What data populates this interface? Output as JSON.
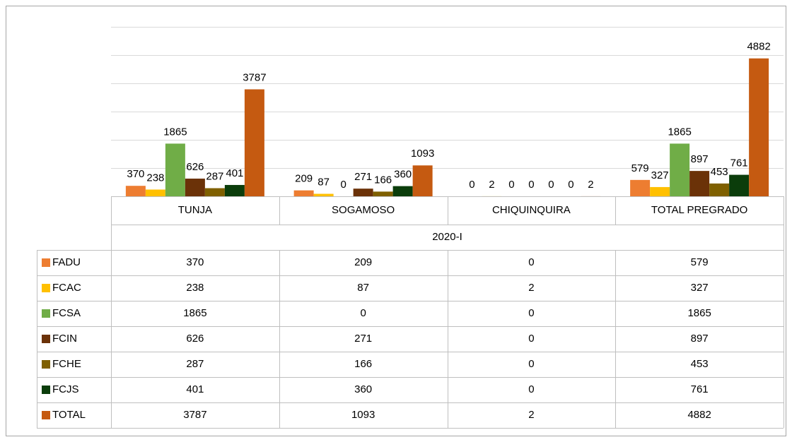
{
  "chart_data": {
    "type": "bar",
    "group_label": "2020-I",
    "categories": [
      "TUNJA",
      "SOGAMOSO",
      "CHIQUINQUIRA",
      "TOTAL PREGRADO"
    ],
    "series": [
      {
        "name": "FADU",
        "color": "#ed7d31",
        "values": [
          370,
          209,
          0,
          579
        ]
      },
      {
        "name": "FCAC",
        "color": "#ffc000",
        "values": [
          238,
          87,
          2,
          327
        ]
      },
      {
        "name": "FCSA",
        "color": "#70ad47",
        "values": [
          1865,
          0,
          0,
          1865
        ]
      },
      {
        "name": "FCIN",
        "color": "#6b3208",
        "values": [
          626,
          271,
          0,
          897
        ]
      },
      {
        "name": "FCHE",
        "color": "#7f6000",
        "values": [
          287,
          166,
          0,
          453
        ]
      },
      {
        "name": "FCJS",
        "color": "#0b3d0b",
        "values": [
          401,
          360,
          0,
          761
        ]
      },
      {
        "name": "TOTAL",
        "color": "#c55a11",
        "values": [
          3787,
          1093,
          2,
          4882
        ]
      }
    ],
    "ylim": [
      0,
      6000
    ],
    "yticks": [
      0,
      1000,
      2000,
      3000,
      4000,
      5000,
      6000
    ],
    "grid": true,
    "data_table": true
  }
}
